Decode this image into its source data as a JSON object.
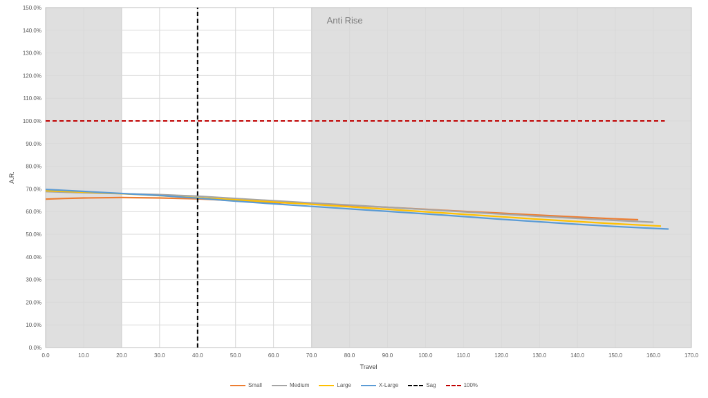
{
  "chart_data": {
    "type": "line",
    "title": "",
    "xlabel": "Travel",
    "ylabel": "A.R.",
    "xlim": [
      0,
      170
    ],
    "ylim": [
      0,
      150
    ],
    "x_ticks": [
      "0.0",
      "10.0",
      "20.0",
      "30.0",
      "40.0",
      "50.0",
      "60.0",
      "70.0",
      "80.0",
      "90.0",
      "100.0",
      "110.0",
      "120.0",
      "130.0",
      "140.0",
      "150.0",
      "160.0",
      "170.0"
    ],
    "y_ticks": [
      "0.0%",
      "10.0%",
      "20.0%",
      "30.0%",
      "40.0%",
      "50.0%",
      "60.0%",
      "70.0%",
      "80.0%",
      "90.0%",
      "100.0%",
      "110.0%",
      "120.0%",
      "130.0%",
      "140.0%",
      "150.0%"
    ],
    "grid": true,
    "legend_position": "bottom",
    "shaded_regions": [
      {
        "x_start": 0,
        "x_end": 20,
        "color": "#d9d9d9"
      },
      {
        "x_start": 70,
        "x_end": 170,
        "color": "#d9d9d9",
        "label": "Anti Rise"
      }
    ],
    "series": [
      {
        "name": "Small",
        "color": "#ed7d31",
        "dash": false,
        "points": [
          [
            0,
            65.5
          ],
          [
            5,
            65.8
          ],
          [
            10,
            66.0
          ],
          [
            15,
            66.1
          ],
          [
            20,
            66.2
          ],
          [
            30,
            66.0
          ],
          [
            40,
            65.6
          ],
          [
            50,
            64.8
          ],
          [
            60,
            64.0
          ],
          [
            70,
            63.5
          ],
          [
            80,
            62.7
          ],
          [
            90,
            61.9
          ],
          [
            100,
            61.0
          ],
          [
            110,
            60.1
          ],
          [
            120,
            59.3
          ],
          [
            130,
            58.4
          ],
          [
            140,
            57.6
          ],
          [
            150,
            56.8
          ],
          [
            156,
            56.4
          ]
        ]
      },
      {
        "name": "Medium",
        "color": "#a5a5a5",
        "dash": false,
        "points": [
          [
            0,
            68.8
          ],
          [
            10,
            68.3
          ],
          [
            20,
            67.9
          ],
          [
            30,
            67.5
          ],
          [
            40,
            66.8
          ],
          [
            50,
            65.8
          ],
          [
            60,
            64.8
          ],
          [
            70,
            63.8
          ],
          [
            80,
            62.9
          ],
          [
            90,
            61.9
          ],
          [
            100,
            60.9
          ],
          [
            110,
            59.9
          ],
          [
            120,
            58.9
          ],
          [
            130,
            57.9
          ],
          [
            140,
            57.0
          ],
          [
            150,
            56.1
          ],
          [
            160,
            55.3
          ]
        ]
      },
      {
        "name": "Large",
        "color": "#ffc000",
        "dash": false,
        "points": [
          [
            0,
            69.2
          ],
          [
            10,
            68.6
          ],
          [
            20,
            67.9
          ],
          [
            30,
            67.0
          ],
          [
            40,
            66.1
          ],
          [
            50,
            65.2
          ],
          [
            60,
            64.2
          ],
          [
            70,
            63.2
          ],
          [
            80,
            62.1
          ],
          [
            90,
            61.0
          ],
          [
            100,
            59.9
          ],
          [
            110,
            58.8
          ],
          [
            120,
            57.7
          ],
          [
            130,
            56.6
          ],
          [
            140,
            55.6
          ],
          [
            150,
            54.6
          ],
          [
            162,
            53.6
          ]
        ]
      },
      {
        "name": "X-Large",
        "color": "#5b9bd5",
        "dash": false,
        "points": [
          [
            0,
            69.8
          ],
          [
            10,
            68.9
          ],
          [
            20,
            68.0
          ],
          [
            30,
            67.1
          ],
          [
            40,
            65.9
          ],
          [
            50,
            64.6
          ],
          [
            60,
            63.4
          ],
          [
            70,
            62.3
          ],
          [
            80,
            61.2
          ],
          [
            90,
            60.1
          ],
          [
            100,
            59.0
          ],
          [
            110,
            57.8
          ],
          [
            120,
            56.6
          ],
          [
            130,
            55.5
          ],
          [
            140,
            54.4
          ],
          [
            150,
            53.4
          ],
          [
            160,
            52.6
          ],
          [
            164,
            52.3
          ]
        ]
      },
      {
        "name": "Sag",
        "color": "#000000",
        "dash": true,
        "points": [
          [
            40,
            0
          ],
          [
            40,
            150
          ]
        ]
      },
      {
        "name": "100%",
        "color": "#c00000",
        "dash": true,
        "points": [
          [
            0,
            100
          ],
          [
            163,
            100
          ]
        ]
      }
    ]
  }
}
